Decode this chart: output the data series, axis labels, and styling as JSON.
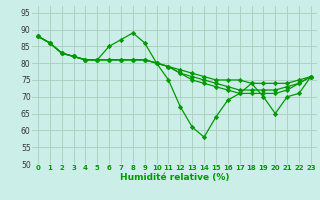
{
  "title": "",
  "xlabel": "Humidité relative (%)",
  "ylabel": "",
  "xlim": [
    -0.5,
    23.5
  ],
  "ylim": [
    50,
    97
  ],
  "yticks": [
    50,
    55,
    60,
    65,
    70,
    75,
    80,
    85,
    90,
    95
  ],
  "xticks": [
    0,
    1,
    2,
    3,
    4,
    5,
    6,
    7,
    8,
    9,
    10,
    11,
    12,
    13,
    14,
    15,
    16,
    17,
    18,
    19,
    20,
    21,
    22,
    23
  ],
  "background_color": "#cceee8",
  "grid_color": "#aaccbb",
  "line_color": "#009900",
  "series": [
    [
      88,
      86,
      83,
      82,
      81,
      81,
      85,
      87,
      89,
      86,
      80,
      75,
      67,
      61,
      58,
      64,
      69,
      71,
      74,
      70,
      65,
      70,
      71,
      76
    ],
    [
      88,
      86,
      83,
      82,
      81,
      81,
      81,
      81,
      81,
      81,
      80,
      79,
      78,
      77,
      76,
      75,
      75,
      75,
      74,
      74,
      74,
      74,
      75,
      76
    ],
    [
      88,
      86,
      83,
      82,
      81,
      81,
      81,
      81,
      81,
      81,
      80,
      79,
      77,
      76,
      75,
      74,
      73,
      72,
      72,
      72,
      72,
      73,
      74,
      76
    ],
    [
      88,
      86,
      83,
      82,
      81,
      81,
      81,
      81,
      81,
      81,
      80,
      79,
      77,
      75,
      74,
      73,
      72,
      71,
      71,
      71,
      71,
      72,
      74,
      76
    ]
  ]
}
